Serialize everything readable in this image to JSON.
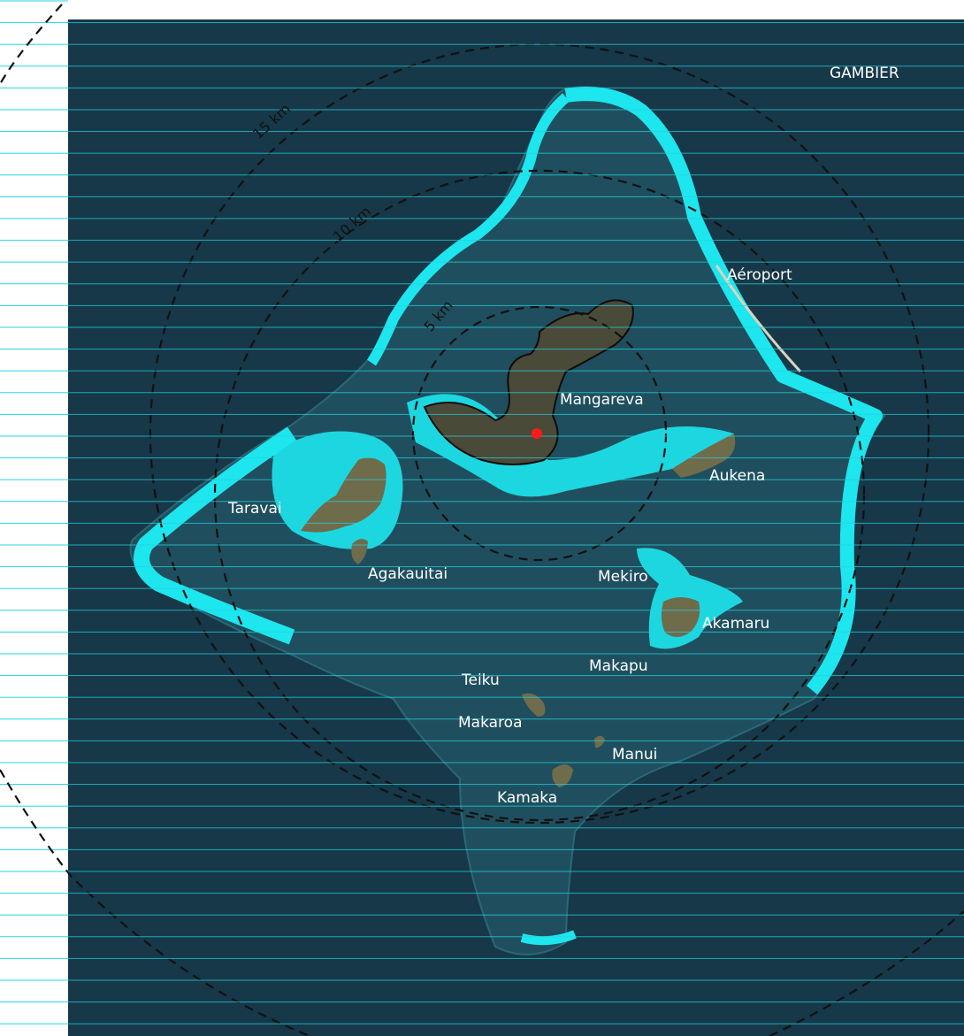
{
  "map": {
    "title": "GAMBIER",
    "colors": {
      "sea": "#163848",
      "lagoon": "#1f4f5e",
      "reef": "#1de6ee",
      "land": "#6f6c4c",
      "rings": "#111111",
      "town": "#ff1a1a",
      "label": "#ffffff",
      "grid_lines": "#22d3e0"
    },
    "rings": [
      {
        "label": "5 km"
      },
      {
        "label": "10 km"
      },
      {
        "label": "15 km"
      }
    ],
    "places": {
      "aeroport": "Aéroport",
      "mangareva": "Mangareva",
      "aukena": "Aukena",
      "taravai": "Taravai",
      "agakauitai": "Agakauitai",
      "mekiro": "Mekiro",
      "akamaru": "Akamaru",
      "makapu": "Makapu",
      "teiku": "Teiku",
      "makaroa": "Makaroa",
      "manui": "Manui",
      "kamaka": "Kamaka"
    }
  }
}
